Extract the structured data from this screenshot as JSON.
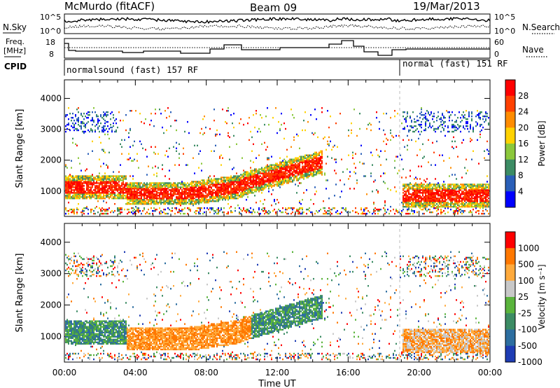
{
  "header": {
    "station": "McMurdo (fitACF)",
    "beam": "Beam 09",
    "date": "19/Mar/2013"
  },
  "noise_panel": {
    "left_label": "N.Sky",
    "right_label": "N.Search",
    "y_top_tick": "10^5",
    "y_bottom_tick": "10^0"
  },
  "freq_panel": {
    "left_label_line1": "Freq.",
    "left_label_line2": "[MHz]",
    "left_ticks": [
      "18",
      "8"
    ],
    "right_label": "Nave",
    "right_ticks": [
      "60",
      "0"
    ]
  },
  "cpid_panel": {
    "label": "CPID",
    "segments": [
      {
        "text": "normalsound (fast) 157 RF",
        "start_hour": 0
      },
      {
        "text": "normal (fast) 151 RF",
        "start_hour": 19.1
      }
    ]
  },
  "chart_data": [
    {
      "type": "heatmap",
      "name": "power",
      "ylabel": "Slant Range [km]",
      "yticks": [
        1000,
        2000,
        3000,
        4000
      ],
      "ylim": [
        180,
        4600
      ],
      "xlim": [
        0,
        24
      ],
      "colorbar_label": "Power [dB]",
      "colorbar_ticks": [
        "28",
        "24",
        "20",
        "16",
        "12",
        "8",
        "4"
      ],
      "colors": [
        "#0000ff",
        "#2a5fb8",
        "#3c8c64",
        "#8cc83c",
        "#ffd200",
        "#ff8c00",
        "#ff4000",
        "#ff0000"
      ]
    },
    {
      "type": "heatmap",
      "name": "velocity",
      "ylabel": "Slant Range [km]",
      "yticks": [
        1000,
        2000,
        3000,
        4000
      ],
      "ylim": [
        180,
        4600
      ],
      "xlim": [
        0,
        24
      ],
      "colorbar_label": "Velocity [m s⁻¹]",
      "colorbar_ticks": [
        "1000",
        "500",
        "100",
        "25",
        "-25",
        "-100",
        "-500",
        "-1000"
      ],
      "colors": [
        "#1e3cb4",
        "#2d6ea0",
        "#3c8c64",
        "#5ab43c",
        "#c8c8c8",
        "#ffaa3c",
        "#ff7800",
        "#ff0000"
      ]
    }
  ],
  "x_axis": {
    "ticks": [
      "00:00",
      "04:00",
      "08:00",
      "12:00",
      "16:00",
      "20:00",
      "00:00"
    ],
    "label": "Time UT"
  }
}
